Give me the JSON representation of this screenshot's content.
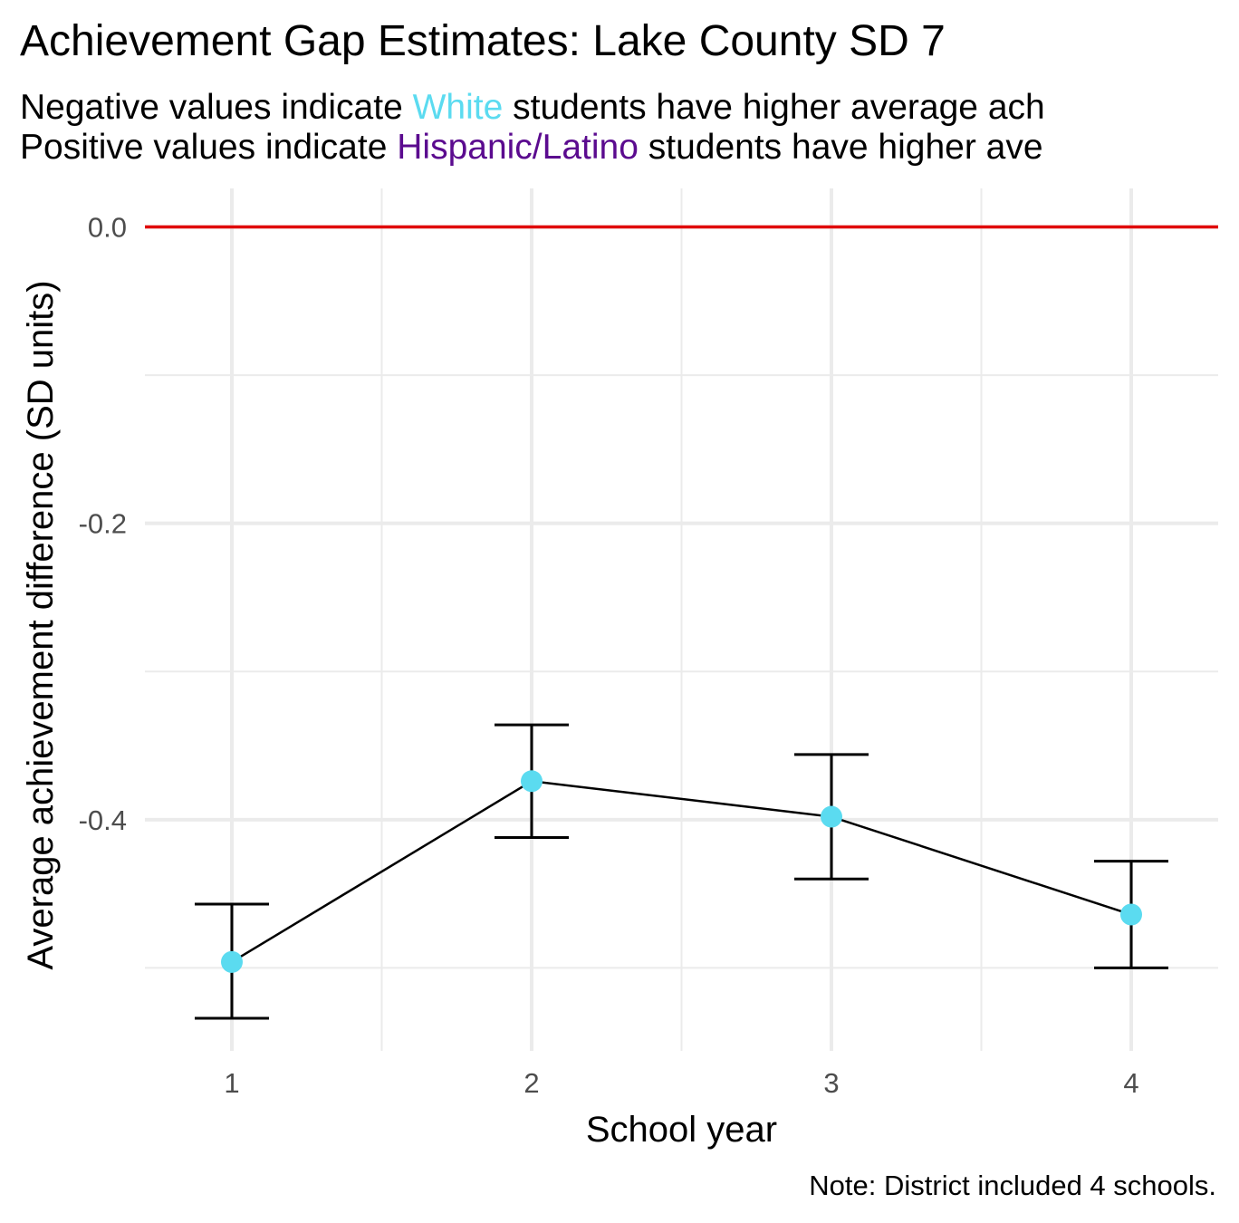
{
  "title": "Achievement Gap Estimates: Lake County SD 7",
  "subtitle": {
    "line1_prefix": "Negative values indicate ",
    "line1_group": "White",
    "line1_suffix": " students have higher average ach",
    "line2_prefix": "Positive values indicate ",
    "line2_group": "Hispanic/Latino",
    "line2_suffix": " students have higher ave"
  },
  "caption": "Note: District included 4 schools.",
  "colors": {
    "point": "#5BDBF0",
    "reference_line": "#E00000",
    "white_group": "#5BDBF0",
    "hispanic_group": "#5B0B8F",
    "grid": "#EBEBEB"
  },
  "chart_data": {
    "type": "line",
    "xlabel": "School year",
    "ylabel": "Average achievement difference (SD units)",
    "x": [
      1,
      2,
      3,
      4
    ],
    "x_tick_labels": [
      "1",
      "2",
      "3",
      "4"
    ],
    "y_ticks": [
      0.0,
      -0.2,
      -0.4
    ],
    "y_tick_labels": [
      "0.0",
      "-0.2",
      "-0.4"
    ],
    "xlim": [
      0.71,
      4.29
    ],
    "ylim": [
      -0.556,
      0.026
    ],
    "series": [
      {
        "values": [
          -0.496,
          -0.374,
          -0.398,
          -0.464
        ],
        "lower": [
          -0.534,
          -0.412,
          -0.44,
          -0.5
        ],
        "upper": [
          -0.457,
          -0.336,
          -0.356,
          -0.428
        ]
      }
    ],
    "reference_line": 0.0,
    "grid": true,
    "legend": "none"
  }
}
